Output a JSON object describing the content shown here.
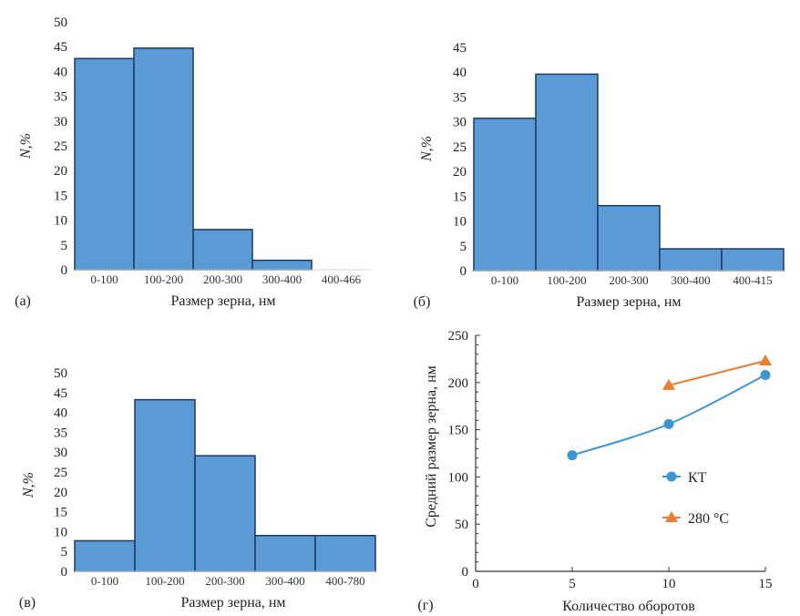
{
  "chart_data": [
    {
      "type": "bar",
      "panel_label": "(а)",
      "xlabel": "Размер зерна, нм",
      "ylabel": "N,%",
      "categories": [
        "0-100",
        "100-200",
        "200-300",
        "300-400",
        "400-466"
      ],
      "values": [
        42.6,
        44.7,
        8.1,
        1.9,
        0
      ],
      "ylim": [
        0,
        50
      ],
      "yticks": [
        0,
        5,
        10,
        15,
        20,
        25,
        30,
        35,
        40,
        45,
        50
      ],
      "grid": false,
      "colors": {
        "fill": "#5b9bd5",
        "edge": "#1f3864"
      }
    },
    {
      "type": "bar",
      "panel_label": "(б)",
      "xlabel": "Размер зерна, нм",
      "ylabel": "N,%",
      "categories": [
        "0-100",
        "100-200",
        "200-300",
        "300-400",
        "400-415"
      ],
      "values": [
        30.7,
        39.6,
        13.1,
        4.4,
        4.4
      ],
      "ylim": [
        0,
        45
      ],
      "yticks": [
        0,
        5,
        10,
        15,
        20,
        25,
        30,
        35,
        40,
        45
      ],
      "grid": false,
      "colors": {
        "fill": "#5b9bd5",
        "edge": "#1f3864"
      }
    },
    {
      "type": "bar",
      "panel_label": "(в)",
      "xlabel": "Размер зерна, нм",
      "ylabel": "N,%",
      "categories": [
        "0-100",
        "100-200",
        "200-300",
        "300-400",
        "400-780"
      ],
      "values": [
        7.7,
        43.2,
        29.1,
        9.0,
        9.0
      ],
      "ylim": [
        0,
        50
      ],
      "yticks": [
        0,
        5,
        10,
        15,
        20,
        25,
        30,
        35,
        40,
        45,
        50
      ],
      "grid": false,
      "colors": {
        "fill": "#5b9bd5",
        "edge": "#1f3864"
      }
    },
    {
      "type": "line",
      "panel_label": "(г)",
      "xlabel": "Количество оборотов",
      "ylabel": "Средний размер зерна, нм",
      "xlim": [
        0,
        15
      ],
      "ylim": [
        0,
        250
      ],
      "xticks": [
        0,
        5,
        10,
        15
      ],
      "yticks": [
        0,
        50,
        100,
        150,
        200,
        250
      ],
      "grid": false,
      "legend": "center-right",
      "series": [
        {
          "name": "КТ",
          "x": [
            5,
            10,
            15
          ],
          "y": [
            123,
            156,
            208
          ],
          "color": "#3e95d3",
          "marker": "circle"
        },
        {
          "name": "280 °C",
          "x": [
            10,
            15
          ],
          "y": [
            197,
            223
          ],
          "color": "#ed7d31",
          "marker": "triangle"
        }
      ]
    }
  ]
}
